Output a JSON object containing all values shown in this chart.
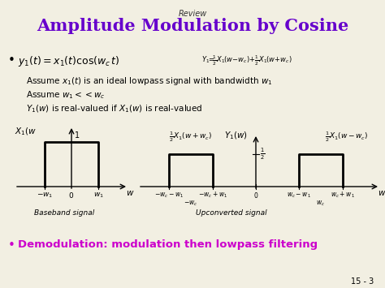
{
  "title": "Amplitude Modulation by Cosine",
  "review_text": "Review",
  "background_color": "#f2efe2",
  "title_color": "#6600cc",
  "bullet_color": "#cc00cc",
  "text_color": "#000000",
  "page_num": "15 - 3",
  "assume1": "Assume $x_1(t)$ is an ideal lowpass signal with bandwidth $w_1$",
  "assume2": "Assume $w_1 << w_c$",
  "assume3": "$Y_1(w)$ is real-valued if $X_1(w)$ is real-valued",
  "baseband_caption": "Baseband signal",
  "upconverted_caption": "Upconverted signal"
}
